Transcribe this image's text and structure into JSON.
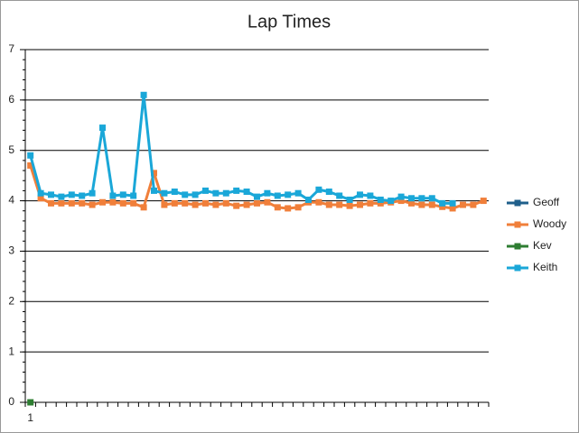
{
  "chart_data": {
    "type": "line",
    "title": "Lap Times",
    "categories": [
      "1",
      null,
      null,
      null,
      null,
      null,
      null,
      null,
      null,
      null,
      null,
      null,
      null,
      null,
      null,
      null,
      null,
      null,
      null,
      null,
      null,
      null,
      null,
      null,
      null,
      null,
      null,
      null,
      null,
      null,
      null,
      null,
      null,
      null,
      null,
      null,
      null,
      null,
      null,
      null,
      null,
      null,
      null,
      null,
      null
    ],
    "series": [
      {
        "name": "Geoff",
        "color": "#1f5f8b",
        "values": [
          null,
          null,
          null,
          null,
          null,
          null,
          null,
          null,
          null,
          null,
          null,
          null,
          null,
          null,
          null,
          null,
          null,
          null,
          null,
          null,
          null,
          null,
          null,
          null,
          null,
          null,
          null,
          null,
          null,
          null,
          null,
          null,
          null,
          null,
          null,
          null,
          null,
          null,
          null,
          null,
          null,
          null,
          null,
          null,
          null
        ]
      },
      {
        "name": "Woody",
        "color": "#f07f3a",
        "values": [
          4.7,
          4.05,
          3.95,
          3.95,
          3.95,
          3.95,
          3.92,
          3.97,
          3.97,
          3.95,
          3.95,
          3.87,
          4.55,
          3.92,
          3.95,
          3.95,
          3.92,
          3.95,
          3.92,
          3.95,
          3.9,
          3.92,
          3.95,
          3.97,
          3.87,
          3.85,
          3.87,
          3.97,
          3.97,
          3.92,
          3.92,
          3.9,
          3.92,
          3.95,
          3.95,
          3.97,
          4.0,
          3.95,
          3.92,
          3.92,
          3.88,
          3.85,
          3.92,
          3.92,
          4.0
        ]
      },
      {
        "name": "Kev",
        "color": "#2e7d32",
        "values": [
          0,
          null,
          null,
          null,
          null,
          null,
          null,
          null,
          null,
          null,
          null,
          null,
          null,
          null,
          null,
          null,
          null,
          null,
          null,
          null,
          null,
          null,
          null,
          null,
          null,
          null,
          null,
          null,
          null,
          null,
          null,
          null,
          null,
          null,
          null,
          null,
          null,
          null,
          null,
          null,
          null,
          null,
          null,
          null,
          null
        ]
      },
      {
        "name": "Keith",
        "color": "#1aa7d8",
        "values": [
          4.9,
          4.15,
          4.12,
          4.08,
          4.12,
          4.1,
          4.15,
          5.45,
          4.1,
          4.12,
          4.1,
          6.1,
          4.2,
          4.15,
          4.18,
          4.12,
          4.12,
          4.2,
          4.15,
          4.15,
          4.2,
          4.18,
          4.08,
          4.15,
          4.1,
          4.12,
          4.15,
          4.02,
          4.22,
          4.18,
          4.1,
          4.02,
          4.12,
          4.1,
          4.02,
          4.0,
          4.08,
          4.05,
          4.05,
          4.05,
          3.95,
          3.95,
          null,
          null,
          null
        ]
      }
    ],
    "ylim": [
      0,
      7
    ],
    "yticks": [
      0,
      1,
      2,
      3,
      4,
      5,
      6,
      7
    ],
    "grid": true,
    "legend": "right"
  }
}
